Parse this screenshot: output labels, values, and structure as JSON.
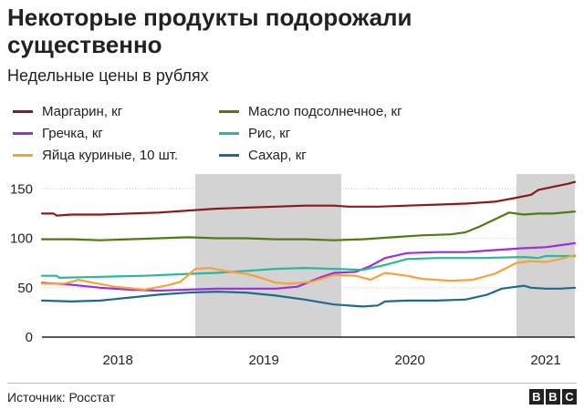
{
  "chart_data": {
    "type": "line",
    "title": "Некоторые продукты подорожали существенно",
    "subtitle": "Недельные цены в рублях",
    "xlabel": "",
    "ylabel": "",
    "ylim": [
      0,
      165
    ],
    "xlim": [
      2017.6,
      2021.25
    ],
    "yticks": [
      0,
      50,
      100,
      150
    ],
    "x_tick_labels": [
      {
        "x": 2018.12,
        "label": "2018"
      },
      {
        "x": 2019.12,
        "label": "2019"
      },
      {
        "x": 2020.12,
        "label": "2020"
      },
      {
        "x": 2021.05,
        "label": "2021"
      }
    ],
    "shaded_periods": [
      [
        2018.65,
        2019.65
      ],
      [
        2020.85,
        2021.25
      ]
    ],
    "series": [
      {
        "name": "Маргарин, кг",
        "color": "#8b1a1a",
        "points": [
          [
            2017.6,
            125
          ],
          [
            2017.68,
            125
          ],
          [
            2017.7,
            123
          ],
          [
            2017.8,
            124
          ],
          [
            2018.0,
            124
          ],
          [
            2018.2,
            125
          ],
          [
            2018.4,
            126
          ],
          [
            2018.6,
            128
          ],
          [
            2018.8,
            130
          ],
          [
            2019.0,
            131
          ],
          [
            2019.2,
            132
          ],
          [
            2019.4,
            133
          ],
          [
            2019.6,
            133
          ],
          [
            2019.7,
            132
          ],
          [
            2019.9,
            132
          ],
          [
            2020.1,
            133
          ],
          [
            2020.3,
            134
          ],
          [
            2020.5,
            135
          ],
          [
            2020.7,
            137
          ],
          [
            2020.85,
            141
          ],
          [
            2020.95,
            144
          ],
          [
            2021.0,
            149
          ],
          [
            2021.1,
            152
          ],
          [
            2021.2,
            155
          ],
          [
            2021.25,
            157
          ]
        ]
      },
      {
        "name": "Масло подсолнечное, кг",
        "color": "#4d7c14",
        "points": [
          [
            2017.6,
            99
          ],
          [
            2017.8,
            99
          ],
          [
            2018.0,
            98
          ],
          [
            2018.2,
            99
          ],
          [
            2018.4,
            100
          ],
          [
            2018.6,
            101
          ],
          [
            2018.8,
            100
          ],
          [
            2019.0,
            100
          ],
          [
            2019.2,
            99
          ],
          [
            2019.4,
            99
          ],
          [
            2019.6,
            98
          ],
          [
            2019.8,
            99
          ],
          [
            2020.0,
            101
          ],
          [
            2020.2,
            103
          ],
          [
            2020.4,
            104
          ],
          [
            2020.5,
            106
          ],
          [
            2020.6,
            112
          ],
          [
            2020.7,
            119
          ],
          [
            2020.8,
            126
          ],
          [
            2020.9,
            124
          ],
          [
            2021.0,
            125
          ],
          [
            2021.1,
            125
          ],
          [
            2021.25,
            127
          ]
        ]
      },
      {
        "name": "Гречка, кг",
        "color": "#9b2fe0",
        "points": [
          [
            2017.6,
            55
          ],
          [
            2017.8,
            53
          ],
          [
            2018.0,
            50
          ],
          [
            2018.2,
            48
          ],
          [
            2018.4,
            47
          ],
          [
            2018.6,
            48
          ],
          [
            2018.8,
            49
          ],
          [
            2019.0,
            49
          ],
          [
            2019.2,
            49
          ],
          [
            2019.35,
            51
          ],
          [
            2019.5,
            60
          ],
          [
            2019.6,
            65
          ],
          [
            2019.75,
            66
          ],
          [
            2019.85,
            72
          ],
          [
            2019.95,
            80
          ],
          [
            2020.1,
            85
          ],
          [
            2020.3,
            86
          ],
          [
            2020.5,
            86
          ],
          [
            2020.7,
            88
          ],
          [
            2020.9,
            90
          ],
          [
            2021.05,
            91
          ],
          [
            2021.15,
            93
          ],
          [
            2021.25,
            95
          ]
        ]
      },
      {
        "name": "Рис, кг",
        "color": "#2bb89a",
        "points": [
          [
            2017.6,
            62
          ],
          [
            2017.7,
            62
          ],
          [
            2017.72,
            60
          ],
          [
            2018.0,
            61
          ],
          [
            2018.3,
            62
          ],
          [
            2018.6,
            64
          ],
          [
            2018.8,
            65
          ],
          [
            2019.0,
            67
          ],
          [
            2019.2,
            69
          ],
          [
            2019.4,
            70
          ],
          [
            2019.6,
            69
          ],
          [
            2019.8,
            68
          ],
          [
            2019.95,
            73
          ],
          [
            2020.1,
            79
          ],
          [
            2020.3,
            80
          ],
          [
            2020.6,
            80
          ],
          [
            2020.9,
            81
          ],
          [
            2021.0,
            80
          ],
          [
            2021.05,
            82
          ],
          [
            2021.25,
            82
          ]
        ]
      },
      {
        "name": "Яйца куриные, 10 шт.",
        "color": "#f5a23a",
        "points": [
          [
            2017.6,
            54
          ],
          [
            2017.75,
            54
          ],
          [
            2017.85,
            58
          ],
          [
            2017.95,
            55
          ],
          [
            2018.1,
            51
          ],
          [
            2018.3,
            48
          ],
          [
            2018.45,
            52
          ],
          [
            2018.55,
            56
          ],
          [
            2018.65,
            69
          ],
          [
            2018.75,
            70
          ],
          [
            2018.85,
            67
          ],
          [
            2019.0,
            64
          ],
          [
            2019.1,
            60
          ],
          [
            2019.2,
            55
          ],
          [
            2019.3,
            54
          ],
          [
            2019.45,
            56
          ],
          [
            2019.6,
            63
          ],
          [
            2019.75,
            62
          ],
          [
            2019.85,
            58
          ],
          [
            2019.95,
            65
          ],
          [
            2020.1,
            62
          ],
          [
            2020.2,
            59
          ],
          [
            2020.4,
            57
          ],
          [
            2020.55,
            58
          ],
          [
            2020.7,
            64
          ],
          [
            2020.85,
            75
          ],
          [
            2020.95,
            77
          ],
          [
            2021.05,
            76
          ],
          [
            2021.15,
            79
          ],
          [
            2021.25,
            83
          ]
        ]
      },
      {
        "name": "Сахар, кг",
        "color": "#1e6a8c",
        "points": [
          [
            2017.6,
            37
          ],
          [
            2017.8,
            36
          ],
          [
            2018.0,
            37
          ],
          [
            2018.2,
            40
          ],
          [
            2018.4,
            43
          ],
          [
            2018.6,
            45
          ],
          [
            2018.8,
            46
          ],
          [
            2019.0,
            45
          ],
          [
            2019.2,
            42
          ],
          [
            2019.4,
            38
          ],
          [
            2019.6,
            33
          ],
          [
            2019.8,
            31
          ],
          [
            2019.9,
            32
          ],
          [
            2019.95,
            36
          ],
          [
            2020.1,
            37
          ],
          [
            2020.3,
            37
          ],
          [
            2020.5,
            38
          ],
          [
            2020.65,
            43
          ],
          [
            2020.75,
            49
          ],
          [
            2020.85,
            51
          ],
          [
            2020.9,
            52
          ],
          [
            2020.95,
            50
          ],
          [
            2021.05,
            49
          ],
          [
            2021.15,
            49
          ],
          [
            2021.25,
            50
          ]
        ]
      }
    ]
  },
  "source_text": "Источник: Росстат",
  "logo_letters": [
    "B",
    "B",
    "C"
  ]
}
